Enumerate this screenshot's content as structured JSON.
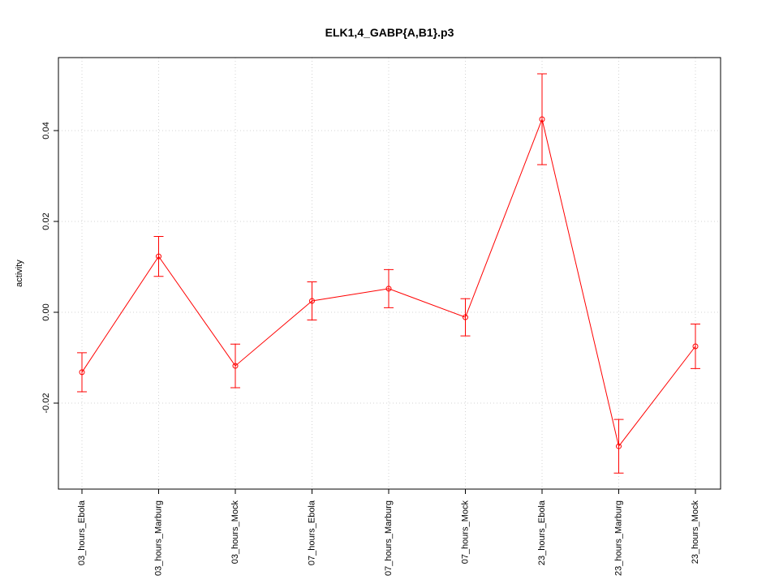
{
  "chart_data": {
    "type": "line",
    "title": "ELK1,4_GABP{A,B1}.p3",
    "ylabel": "activity",
    "categories": [
      "03_hours_Ebola",
      "03_hours_Marburg",
      "03_hours_Mock",
      "07_hours_Ebola",
      "07_hours_Marburg",
      "07_hours_Mock",
      "23_hours_Ebola",
      "23_hours_Marburg",
      "23_hours_Mock"
    ],
    "series": [
      {
        "color": "#ff0000",
        "values": [
          -0.0132,
          0.0123,
          -0.0118,
          0.0025,
          0.0052,
          -0.0011,
          0.0425,
          -0.0295,
          -0.0075
        ],
        "errors": [
          0.0043,
          0.0044,
          0.0048,
          0.0042,
          0.0042,
          0.0041,
          0.01,
          0.0059,
          0.0049
        ]
      }
    ],
    "ylim": [
      -0.03893,
      0.05607
    ],
    "yticks": [
      -0.02,
      {
        "value": 0,
        "label": "0.00"
      },
      0.02,
      0.04
    ],
    "grid": true
  }
}
